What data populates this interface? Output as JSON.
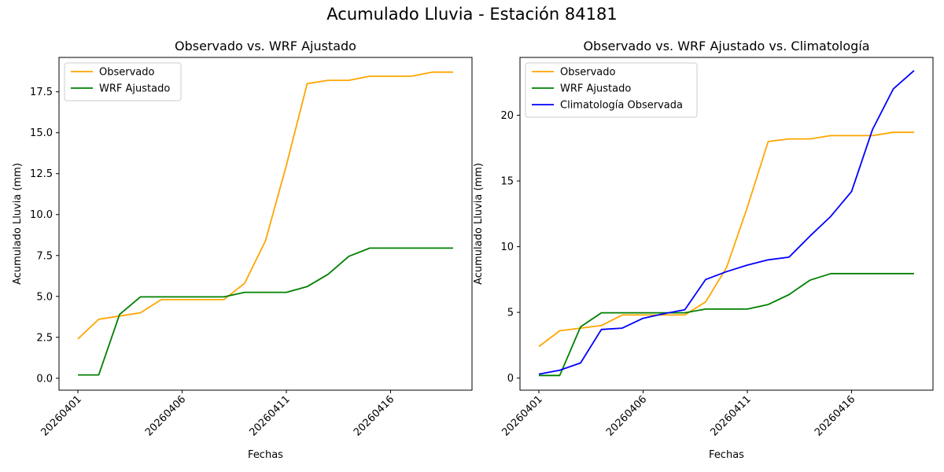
{
  "suptitle": "Acumulado Lluvia - Estación 84181",
  "colors": {
    "observado": "#ffa500",
    "wrf": "#008000",
    "clim": "#0000ff"
  },
  "chart_data": [
    {
      "type": "line",
      "title": "Observado vs. WRF Ajustado",
      "xlabel": "Fechas",
      "ylabel": "Acumulado Lluvia (mm)",
      "x": [
        "20260401",
        "20260402",
        "20260403",
        "20260404",
        "20260405",
        "20260406",
        "20260407",
        "20260408",
        "20260409",
        "20260410",
        "20260411",
        "20260412",
        "20260413",
        "20260414",
        "20260415",
        "20260416",
        "20260417",
        "20260418",
        "20260419"
      ],
      "xticks": [
        "20260401",
        "20260406",
        "20260411",
        "20260416"
      ],
      "ylim": [
        -0.73,
        19.6
      ],
      "yticks": [
        "0.0",
        "2.5",
        "5.0",
        "7.5",
        "10.0",
        "12.5",
        "15.0",
        "17.5"
      ],
      "ytick_values": [
        0,
        2.5,
        5,
        7.5,
        10,
        12.5,
        15,
        17.5
      ],
      "legend": "top-left",
      "series": [
        {
          "name": "Observado",
          "color": "#ffa500",
          "values": [
            2.4,
            3.6,
            3.8,
            4.0,
            4.8,
            4.8,
            4.8,
            4.8,
            5.8,
            8.4,
            13.0,
            18.0,
            18.2,
            18.2,
            18.45,
            18.45,
            18.45,
            18.7,
            18.7
          ]
        },
        {
          "name": "WRF Ajustado",
          "color": "#008000",
          "values": [
            0.2,
            0.2,
            3.9,
            4.97,
            4.97,
            4.97,
            4.97,
            4.97,
            5.25,
            5.25,
            5.25,
            5.6,
            6.35,
            7.45,
            7.95,
            7.95,
            7.95,
            7.95,
            7.95
          ]
        }
      ]
    },
    {
      "type": "line",
      "title": "Observado vs. WRF Ajustado vs. Climatología",
      "xlabel": "Fechas",
      "ylabel": "Acumulado Lluvia (mm)",
      "x": [
        "20260401",
        "20260402",
        "20260403",
        "20260404",
        "20260405",
        "20260406",
        "20260407",
        "20260408",
        "20260409",
        "20260410",
        "20260411",
        "20260412",
        "20260413",
        "20260414",
        "20260415",
        "20260416",
        "20260417",
        "20260418",
        "20260419"
      ],
      "xticks": [
        "20260401",
        "20260406",
        "20260411",
        "20260416"
      ],
      "ylim": [
        -0.92,
        24.4
      ],
      "yticks": [
        "0",
        "5",
        "10",
        "15",
        "20"
      ],
      "ytick_values": [
        0,
        5,
        10,
        15,
        20
      ],
      "legend": "top-left",
      "series": [
        {
          "name": "Observado",
          "color": "#ffa500",
          "values": [
            2.4,
            3.6,
            3.8,
            4.0,
            4.8,
            4.8,
            4.8,
            4.8,
            5.8,
            8.4,
            13.0,
            18.0,
            18.2,
            18.2,
            18.45,
            18.45,
            18.45,
            18.7,
            18.7
          ]
        },
        {
          "name": "WRF Ajustado",
          "color": "#008000",
          "values": [
            0.2,
            0.2,
            3.9,
            4.97,
            4.97,
            4.97,
            4.97,
            4.97,
            5.25,
            5.25,
            5.25,
            5.6,
            6.35,
            7.45,
            7.95,
            7.95,
            7.95,
            7.95,
            7.95
          ]
        },
        {
          "name": "Climatología Observada",
          "color": "#0000ff",
          "values": [
            0.3,
            0.6,
            1.15,
            3.7,
            3.8,
            4.55,
            4.9,
            5.2,
            7.5,
            8.1,
            8.6,
            9.0,
            9.2,
            10.8,
            12.3,
            14.2,
            18.9,
            22.0,
            23.4
          ]
        }
      ]
    }
  ]
}
